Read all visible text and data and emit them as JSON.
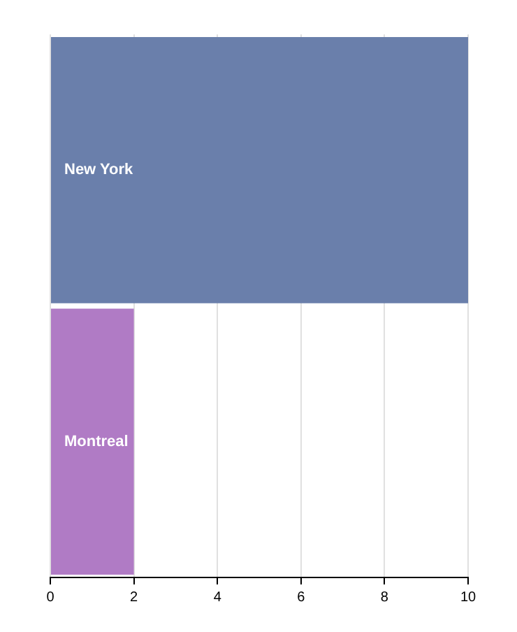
{
  "chart_data": {
    "type": "bar",
    "orientation": "horizontal",
    "categories": [
      "New York",
      "Montreal"
    ],
    "colors": [
      "#6a7fab",
      "#b07bc5"
    ],
    "values": [
      10,
      2
    ],
    "xlim": [
      0,
      10
    ],
    "xticks": [
      0,
      2,
      4,
      6,
      8,
      10
    ],
    "grid": "x"
  }
}
